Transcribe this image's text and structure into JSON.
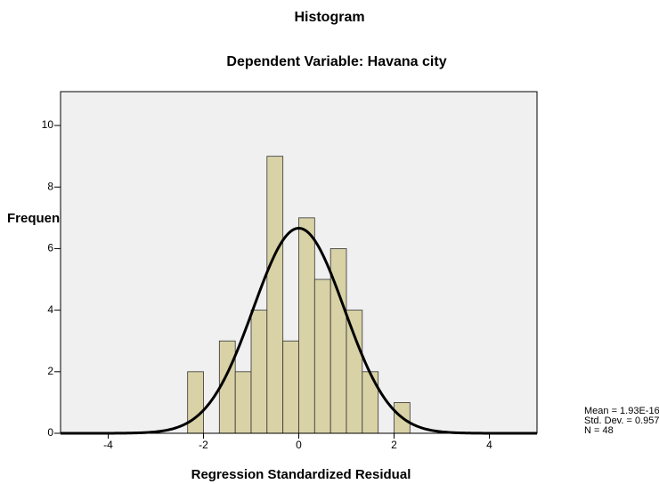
{
  "chart_data": {
    "type": "histogram",
    "title": "Histogram",
    "subtitle": "Dependent Variable: Havana city",
    "x_label": "Regression Standardized Residual",
    "y_label": "Frequency",
    "bins": [
      -2.333,
      -2,
      -1.667,
      -1.333,
      -1,
      -0.667,
      -0.333,
      0,
      0.333,
      0.667,
      1,
      1.333,
      1.667,
      2,
      2.333
    ],
    "counts": [
      2,
      0,
      3,
      2,
      4,
      9,
      3,
      7,
      5,
      6,
      4,
      2,
      0,
      1
    ],
    "color": "#d8d2a6",
    "xlim": [
      -5,
      5
    ],
    "xticks": [
      -4,
      -2,
      0,
      2,
      4
    ],
    "ylim": [
      0,
      11.1
    ],
    "yticks": [
      0,
      2,
      4,
      6,
      8,
      10
    ],
    "stats": {
      "mean": 1.93e-16,
      "std_dev": 0.957,
      "n": 48,
      "labels": [
        "Mean = 1.93E-16",
        "Std. Dev. = 0.957",
        "N = 48"
      ]
    }
  }
}
